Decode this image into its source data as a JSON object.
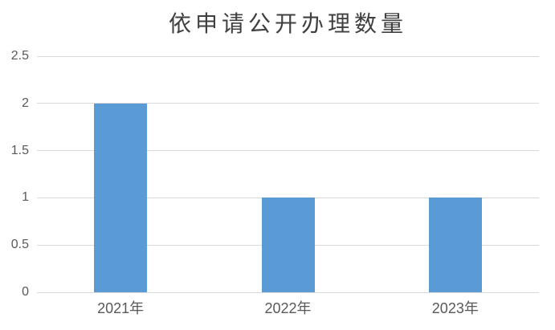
{
  "chart_data": {
    "type": "bar",
    "title": "依申请公开办理数量",
    "categories": [
      "2021年",
      "2022年",
      "2023年"
    ],
    "values": [
      2,
      1,
      1
    ],
    "xlabel": "",
    "ylabel": "",
    "ylim": [
      0,
      2.5
    ],
    "ytick_step": 0.5,
    "yticks": [
      "0",
      "0.5",
      "1",
      "1.5",
      "2",
      "2.5"
    ],
    "grid": "horizontal gridlines on",
    "legend": "none",
    "colors": {
      "bar_fill": "#5B9BD5",
      "gridline": "#D9D9D9",
      "axis_line": "#D9D9D9",
      "axis_text": "#595959",
      "title_text": "#404040",
      "background": "#FFFFFF"
    }
  }
}
